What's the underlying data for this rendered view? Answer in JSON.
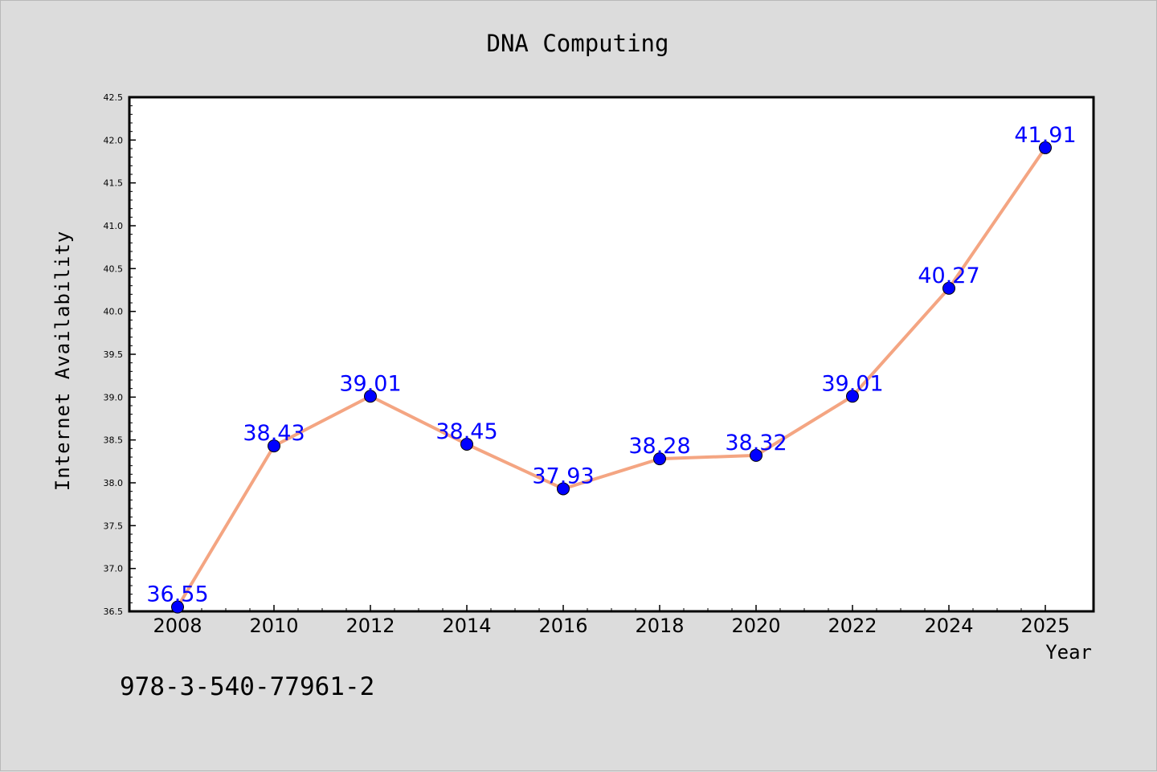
{
  "chart_data": {
    "type": "line",
    "title": "DNA Computing",
    "xlabel": "Year",
    "ylabel": "Internet Availability",
    "x": [
      "2008",
      "2010",
      "2012",
      "2014",
      "2016",
      "2018",
      "2020",
      "2022",
      "2024",
      "2025"
    ],
    "series": [
      {
        "values": [
          36.55,
          38.43,
          39.01,
          38.45,
          37.93,
          38.28,
          38.32,
          39.01,
          40.27,
          41.91
        ],
        "data_labels": [
          "36.55",
          "38.43",
          "39.01",
          "38.45",
          "37.93",
          "38.28",
          "38.32",
          "39.01",
          "40.27",
          "41.91"
        ],
        "line_color": "#f4a582",
        "marker_color": "#0000ff",
        "label_color": "#0000ff"
      }
    ],
    "yticks": [
      "36.5",
      "37.0",
      "37.5",
      "38.0",
      "38.5",
      "39.0",
      "39.5",
      "40.0",
      "40.5",
      "41.0",
      "41.5",
      "42.0",
      "42.5"
    ],
    "ylim": [
      36.5,
      42.5
    ],
    "grid": false,
    "legend": "none",
    "background": "#dcdcdc",
    "plot_background": "#ffffff"
  },
  "footnote": "978-3-540-77961-2"
}
